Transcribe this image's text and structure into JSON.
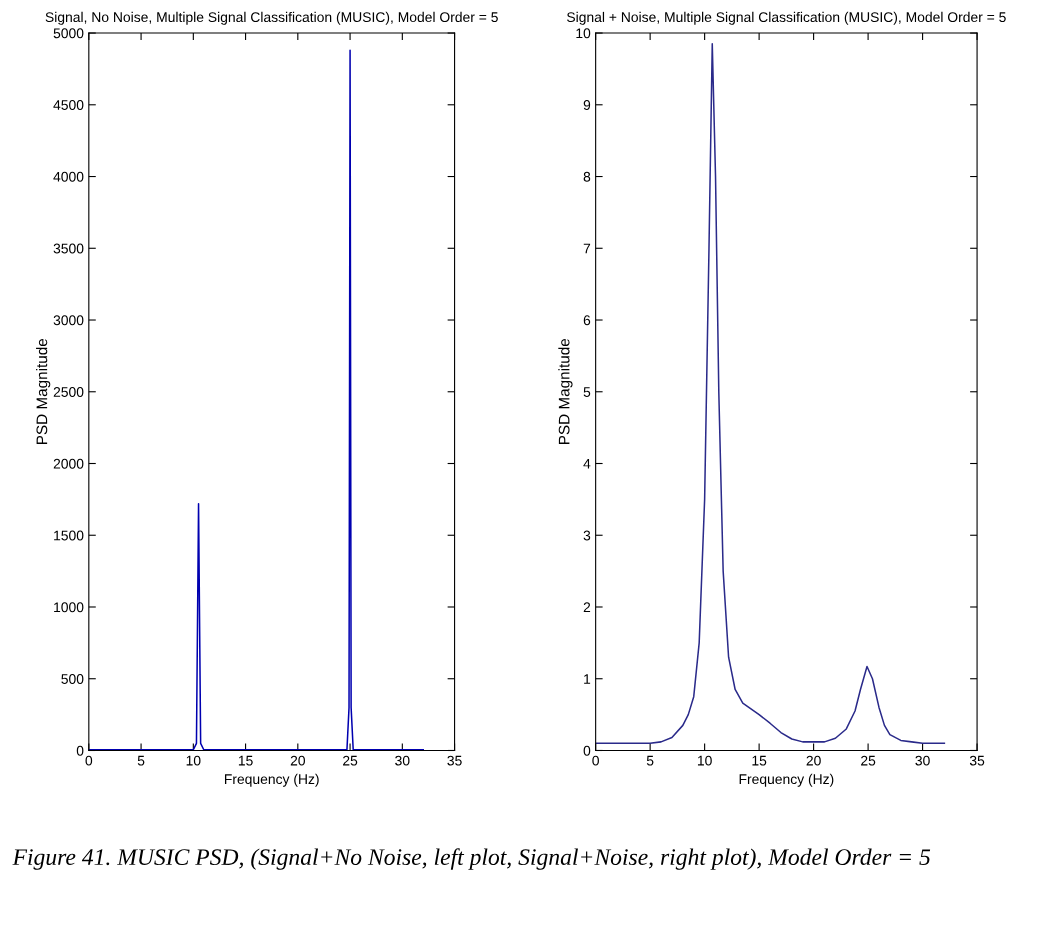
{
  "chart_data": [
    {
      "type": "line",
      "title": "Signal, No Noise, Multiple Signal Classification (MUSIC), Model Order = 5",
      "xlabel": "Frequency (Hz)",
      "ylabel": "PSD Magnitude",
      "series": [
        {
          "color": "#0000b0",
          "x": [
            0,
            10,
            10.3,
            10.5,
            10.7,
            11,
            24.7,
            24.9,
            25,
            25.1,
            25.3,
            32
          ],
          "values": [
            5,
            5,
            50,
            1720,
            50,
            5,
            5,
            300,
            4880,
            300,
            5,
            5
          ]
        }
      ],
      "xlim": [
        0,
        35
      ],
      "xticks": [
        0,
        5,
        10,
        15,
        20,
        25,
        30,
        35
      ],
      "ylim": [
        0,
        5000
      ],
      "yticks": [
        0,
        500,
        1000,
        1500,
        2000,
        2500,
        3000,
        3500,
        4000,
        4500,
        5000
      ],
      "grid": false,
      "legend": false,
      "annotations": [
        "Figure 41. MUSIC PSD, (Signal+No Noise, left plot, Signal+Noise, right plot), Model Order = 5"
      ]
    },
    {
      "type": "line",
      "title": "Signal + Noise, Multiple Signal Classification (MUSIC), Model Order = 5",
      "xlabel": "Frequency (Hz)",
      "ylabel": "PSD Magnitude",
      "series": [
        {
          "color": "#2a2a8a",
          "x": [
            0,
            5,
            6,
            7,
            8,
            8.5,
            9,
            9.5,
            10,
            10.4,
            10.7,
            11,
            11.3,
            11.7,
            12.2,
            12.8,
            13.5,
            15,
            16,
            17,
            18,
            19,
            20,
            21,
            22,
            23,
            23.8,
            24.3,
            24.9,
            25.4,
            26,
            26.5,
            27,
            28,
            29,
            30,
            32
          ],
          "values": [
            0.1,
            0.1,
            0.12,
            0.18,
            0.35,
            0.5,
            0.75,
            1.5,
            3.5,
            7,
            9.85,
            8,
            5,
            2.5,
            1.3,
            0.85,
            0.66,
            0.5,
            0.38,
            0.25,
            0.16,
            0.12,
            0.12,
            0.12,
            0.17,
            0.3,
            0.55,
            0.85,
            1.17,
            1.0,
            0.6,
            0.35,
            0.22,
            0.14,
            0.12,
            0.1,
            0.1
          ]
        }
      ],
      "xlim": [
        0,
        35
      ],
      "xticks": [
        0,
        5,
        10,
        15,
        20,
        25,
        30,
        35
      ],
      "ylim": [
        0,
        10
      ],
      "yticks": [
        0,
        1,
        2,
        3,
        4,
        5,
        6,
        7,
        8,
        9,
        10
      ],
      "grid": false,
      "legend": false
    }
  ]
}
